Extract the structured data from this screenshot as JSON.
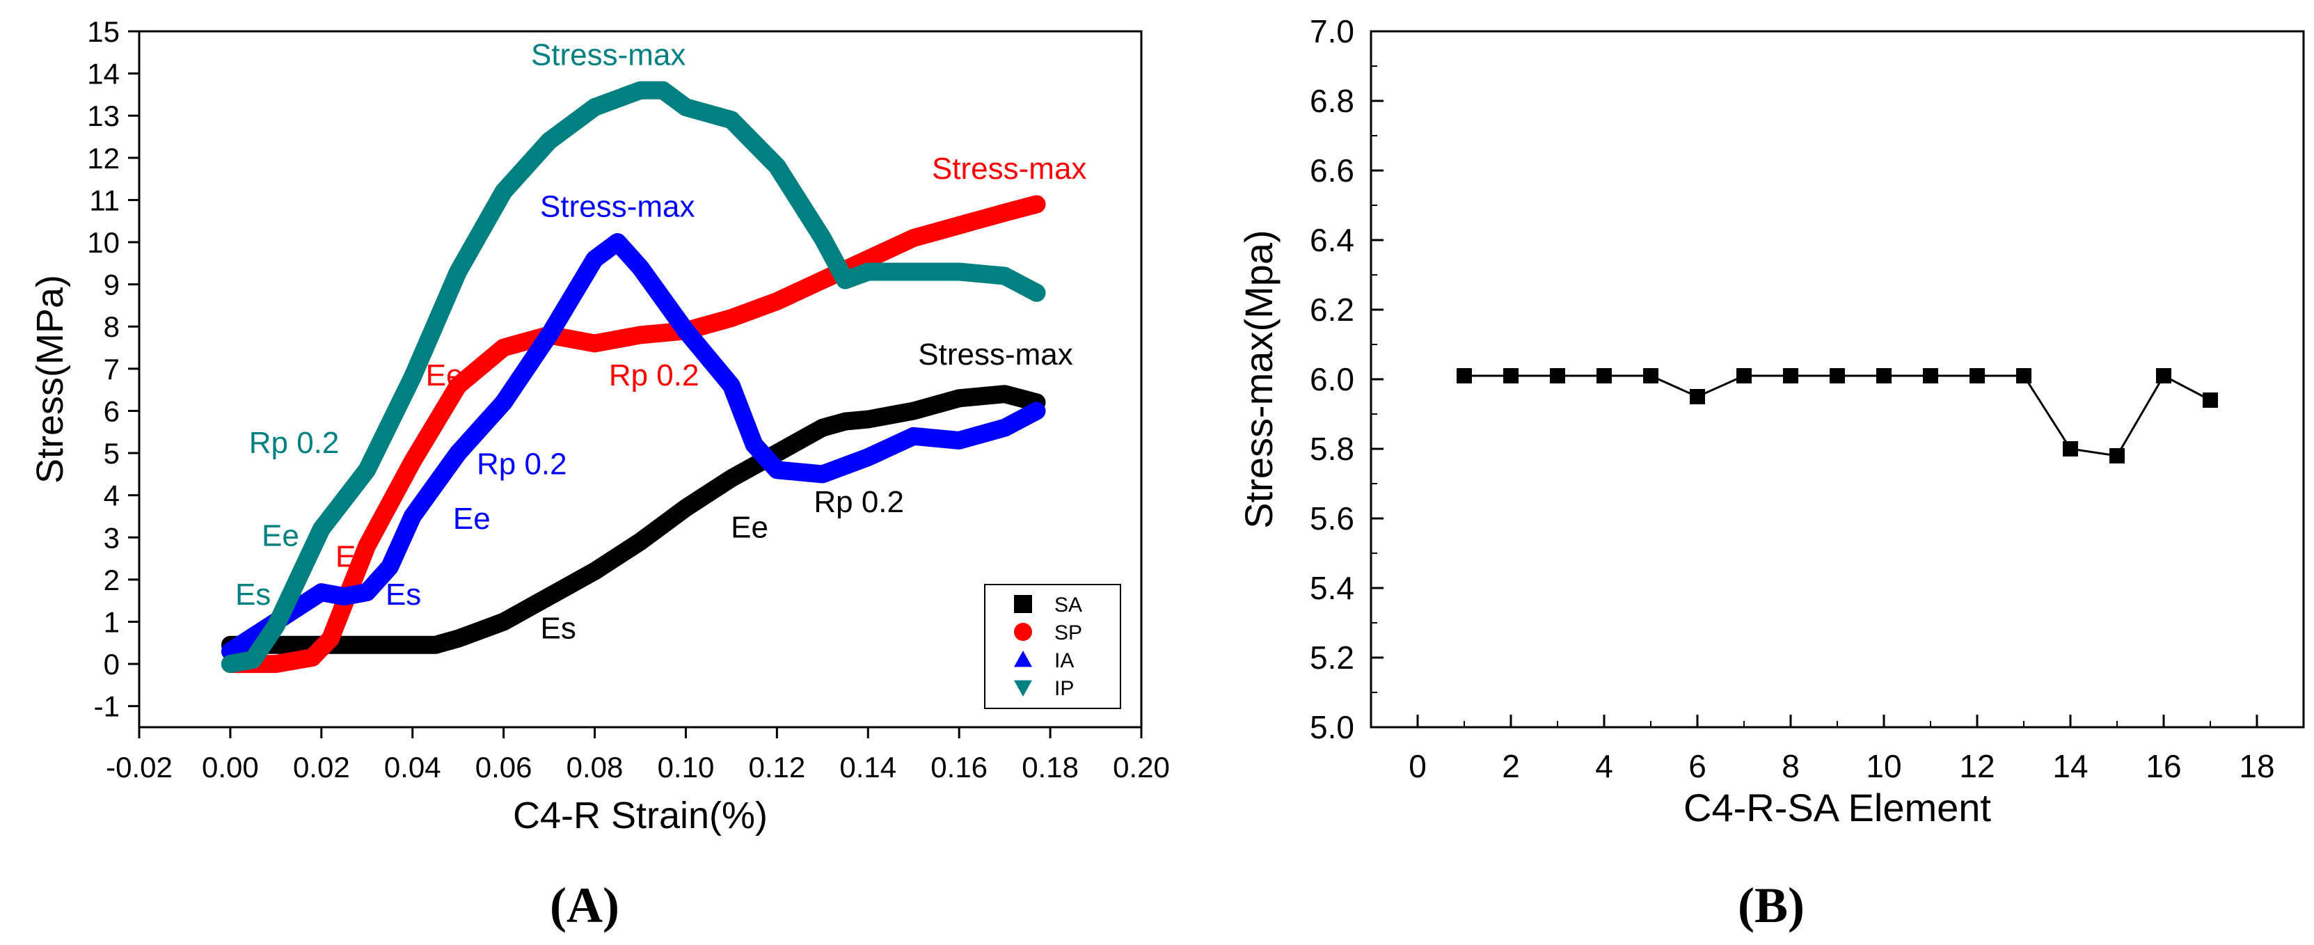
{
  "chart_data": [
    {
      "panel_label": "(A)",
      "type": "line",
      "title": "",
      "xlabel": "C4-R  Strain(%)",
      "ylabel": "Stress(MPa)",
      "xlim": [
        -0.02,
        0.2
      ],
      "ylim": [
        -1.5,
        15
      ],
      "xticks": [
        "-0.02",
        "0.00",
        "0.02",
        "0.04",
        "0.06",
        "0.08",
        "0.10",
        "0.12",
        "0.14",
        "0.16",
        "0.18",
        "0.20"
      ],
      "yticks": [
        "-1",
        "0",
        "1",
        "2",
        "3",
        "4",
        "5",
        "6",
        "7",
        "8",
        "9",
        "10",
        "11",
        "12",
        "13",
        "14",
        "15"
      ],
      "legend_position": "bottom-right",
      "series": [
        {
          "name": "SA",
          "color": "#000000",
          "marker": "square",
          "x": [
            0.0,
            0.01,
            0.03,
            0.045,
            0.05,
            0.06,
            0.07,
            0.08,
            0.09,
            0.1,
            0.11,
            0.12,
            0.13,
            0.135,
            0.14,
            0.15,
            0.16,
            0.17,
            0.177
          ],
          "y": [
            0.45,
            0.45,
            0.45,
            0.45,
            0.6,
            1.0,
            1.6,
            2.2,
            2.9,
            3.7,
            4.4,
            5.0,
            5.6,
            5.75,
            5.8,
            6.0,
            6.3,
            6.4,
            6.2
          ]
        },
        {
          "name": "SP",
          "color": "#ff0000",
          "marker": "circle",
          "x": [
            0.0,
            0.01,
            0.018,
            0.022,
            0.03,
            0.04,
            0.05,
            0.06,
            0.07,
            0.08,
            0.09,
            0.1,
            0.11,
            0.12,
            0.13,
            0.14,
            0.15,
            0.16,
            0.17,
            0.177
          ],
          "y": [
            0.0,
            0.0,
            0.15,
            0.6,
            2.8,
            4.8,
            6.6,
            7.5,
            7.8,
            7.6,
            7.8,
            7.9,
            8.2,
            8.6,
            9.1,
            9.6,
            10.1,
            10.4,
            10.7,
            10.9
          ]
        },
        {
          "name": "IA",
          "color": "#0000ff",
          "marker": "triangle-up",
          "x": [
            0.0,
            0.01,
            0.02,
            0.025,
            0.03,
            0.035,
            0.04,
            0.05,
            0.06,
            0.07,
            0.08,
            0.085,
            0.09,
            0.1,
            0.11,
            0.115,
            0.12,
            0.13,
            0.14,
            0.15,
            0.16,
            0.17,
            0.177
          ],
          "y": [
            0.3,
            1.0,
            1.7,
            1.6,
            1.7,
            2.3,
            3.5,
            5.0,
            6.2,
            7.8,
            9.6,
            10.0,
            9.4,
            7.9,
            6.6,
            5.2,
            4.6,
            4.5,
            4.9,
            5.4,
            5.3,
            5.6,
            6.0
          ]
        },
        {
          "name": "IP",
          "color": "#008080",
          "marker": "triangle-down",
          "x": [
            0.0,
            0.005,
            0.01,
            0.02,
            0.03,
            0.04,
            0.05,
            0.06,
            0.07,
            0.08,
            0.09,
            0.095,
            0.1,
            0.11,
            0.12,
            0.13,
            0.135,
            0.14,
            0.15,
            0.16,
            0.17,
            0.177
          ],
          "y": [
            0.0,
            0.1,
            0.9,
            3.2,
            4.6,
            6.8,
            9.3,
            11.2,
            12.4,
            13.2,
            13.6,
            13.6,
            13.2,
            12.9,
            11.8,
            10.1,
            9.1,
            9.3,
            9.3,
            9.3,
            9.2,
            8.8
          ]
        }
      ],
      "annotations": [
        {
          "text": "Stress-max",
          "series": "IP",
          "x": 0.083,
          "y": 14.2
        },
        {
          "text": "Stress-max",
          "series": "SP",
          "x": 0.171,
          "y": 11.5
        },
        {
          "text": "Stress-max",
          "series": "IA",
          "x": 0.085,
          "y": 10.6
        },
        {
          "text": "Stress-max",
          "series": "SA",
          "x": 0.168,
          "y": 7.1
        },
        {
          "text": "Rp 0.2",
          "series": "IP",
          "x": 0.014,
          "y": 5.0
        },
        {
          "text": "Ee",
          "series": "IP",
          "x": 0.011,
          "y": 2.8
        },
        {
          "text": "Es",
          "series": "IP",
          "x": 0.005,
          "y": 1.4
        },
        {
          "text": "Ee",
          "series": "SP",
          "x": 0.047,
          "y": 6.6
        },
        {
          "text": "Es",
          "series": "SP",
          "x": 0.027,
          "y": 2.3
        },
        {
          "text": "Rp 0.2",
          "series": "SP",
          "x": 0.093,
          "y": 6.6
        },
        {
          "text": "Rp 0.2",
          "series": "IA",
          "x": 0.064,
          "y": 4.5
        },
        {
          "text": "Ee",
          "series": "IA",
          "x": 0.053,
          "y": 3.2
        },
        {
          "text": "Es",
          "series": "IA",
          "x": 0.038,
          "y": 1.4
        },
        {
          "text": "Es",
          "series": "SA",
          "x": 0.072,
          "y": 0.6
        },
        {
          "text": "Ee",
          "series": "SA",
          "x": 0.114,
          "y": 3.0
        },
        {
          "text": "Rp 0.2",
          "series": "SA",
          "x": 0.138,
          "y": 3.6
        }
      ]
    },
    {
      "panel_label": "(B)",
      "type": "line",
      "title": "",
      "xlabel": "C4-R-SA  Element",
      "ylabel": "Stress-max(Mpa)",
      "xlim": [
        -1,
        19
      ],
      "ylim": [
        5.0,
        7.0
      ],
      "xticks": [
        "0",
        "2",
        "4",
        "6",
        "8",
        "10",
        "12",
        "14",
        "16",
        "18"
      ],
      "yticks": [
        "5.0",
        "5.2",
        "5.4",
        "5.6",
        "5.8",
        "6.0",
        "6.2",
        "6.4",
        "6.6",
        "6.8",
        "7.0"
      ],
      "series": [
        {
          "color": "#000000",
          "marker": "square",
          "x": [
            1,
            2,
            3,
            4,
            5,
            6,
            7,
            8,
            9,
            10,
            11,
            12,
            13,
            14,
            15,
            16,
            17
          ],
          "y": [
            6.01,
            6.01,
            6.01,
            6.01,
            6.01,
            5.95,
            6.01,
            6.01,
            6.01,
            6.01,
            6.01,
            6.01,
            6.01,
            5.8,
            5.78,
            6.01,
            5.94
          ]
        }
      ]
    }
  ]
}
